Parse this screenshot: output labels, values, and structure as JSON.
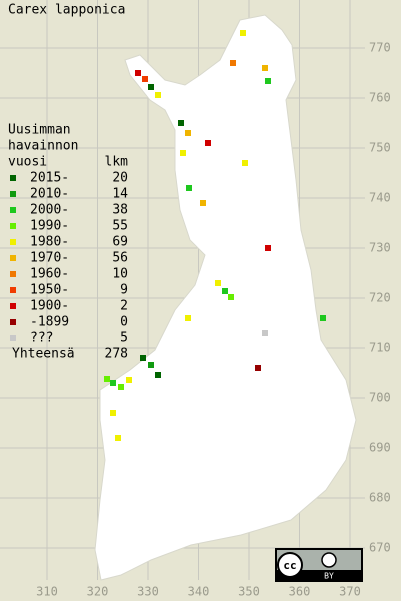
{
  "title": "Carex lapponica",
  "legend": {
    "heading": [
      "Uusimman",
      "havainnon",
      "vuosi"
    ],
    "count_heading": "lkm",
    "rows": [
      {
        "label": "2015-",
        "count": 20,
        "color": "#006400"
      },
      {
        "label": "2010-",
        "count": 14,
        "color": "#109a10"
      },
      {
        "label": "2000-",
        "count": 38,
        "color": "#1ec81e"
      },
      {
        "label": "1990-",
        "count": 55,
        "color": "#66ee00"
      },
      {
        "label": "1980-",
        "count": 69,
        "color": "#f0f000"
      },
      {
        "label": "1970-",
        "count": 56,
        "color": "#f0b400"
      },
      {
        "label": "1960-",
        "count": 10,
        "color": "#f07800"
      },
      {
        "label": "1950-",
        "count": 9,
        "color": "#f03c00"
      },
      {
        "label": "1900-",
        "count": 2,
        "color": "#d00000"
      },
      {
        "label": "-1899",
        "count": 0,
        "color": "#960000"
      },
      {
        "label": "???",
        "count": 5,
        "color": "#c8c8c8"
      }
    ],
    "total_label": "Yhteensä",
    "total": 278
  },
  "grid": {
    "north": [
      770,
      760,
      750,
      740,
      730,
      720,
      710,
      700,
      690,
      680,
      670
    ],
    "east": [
      310,
      320,
      330,
      340,
      350,
      360,
      370
    ]
  },
  "license": {
    "icon": "cc",
    "label": "BY"
  }
}
